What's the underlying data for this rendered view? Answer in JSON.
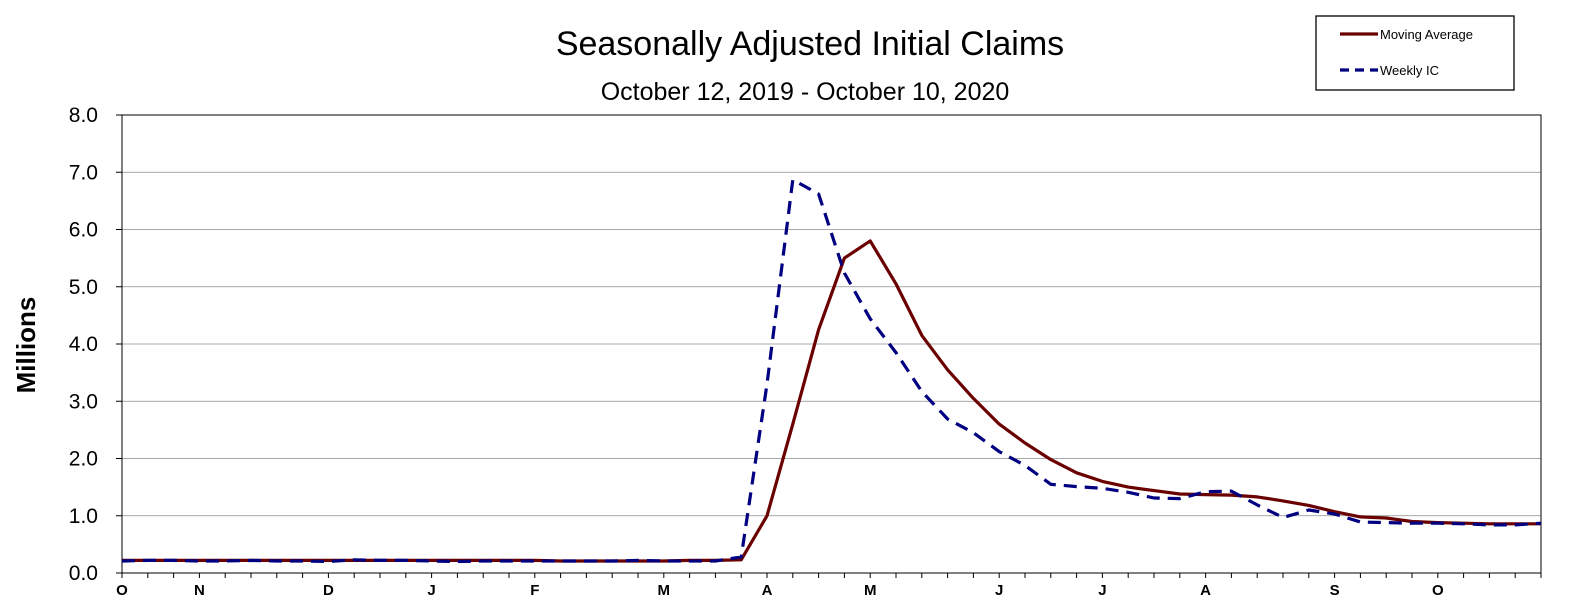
{
  "chart_data": {
    "type": "line",
    "title": "Seasonally Adjusted Initial Claims",
    "subtitle": "October 12, 2019 - October 10, 2020",
    "ylabel": "Millions",
    "xlabel": "",
    "ylim": [
      0,
      8
    ],
    "yticks": [
      "0.0",
      "1.0",
      "2.0",
      "3.0",
      "4.0",
      "5.0",
      "6.0",
      "7.0",
      "8.0"
    ],
    "xtick_labels": [
      "O",
      "N",
      "D",
      "J",
      "F",
      "M",
      "A",
      "M",
      "J",
      "J",
      "A",
      "S",
      "O"
    ],
    "xtick_weeks": [
      0,
      3,
      8,
      12,
      16,
      21,
      25,
      29,
      34,
      38,
      42,
      47,
      51
    ],
    "grid": true,
    "legend_position": "top-right",
    "colors": {
      "moving_average": "#6b0000",
      "weekly_ic": "#000080"
    },
    "series": [
      {
        "name": "Moving Average",
        "style": "solid",
        "values": [
          0.22,
          0.22,
          0.22,
          0.22,
          0.22,
          0.22,
          0.22,
          0.22,
          0.22,
          0.22,
          0.22,
          0.22,
          0.22,
          0.22,
          0.22,
          0.22,
          0.22,
          0.21,
          0.21,
          0.21,
          0.21,
          0.21,
          0.22,
          0.22,
          0.23,
          1.0,
          2.6,
          4.25,
          5.5,
          5.8,
          5.05,
          4.15,
          3.55,
          3.05,
          2.6,
          2.27,
          1.98,
          1.75,
          1.6,
          1.5,
          1.44,
          1.38,
          1.37,
          1.36,
          1.33,
          1.26,
          1.18,
          1.07,
          0.98,
          0.96,
          0.9,
          0.88,
          0.87,
          0.86,
          0.86,
          0.86
        ]
      },
      {
        "name": "Weekly IC",
        "style": "dashed",
        "values": [
          0.21,
          0.22,
          0.22,
          0.21,
          0.21,
          0.22,
          0.21,
          0.21,
          0.2,
          0.23,
          0.22,
          0.22,
          0.21,
          0.2,
          0.21,
          0.21,
          0.21,
          0.21,
          0.21,
          0.21,
          0.22,
          0.21,
          0.21,
          0.21,
          0.28,
          3.3,
          6.87,
          6.62,
          5.24,
          4.44,
          3.85,
          3.17,
          2.69,
          2.45,
          2.12,
          1.88,
          1.55,
          1.51,
          1.48,
          1.41,
          1.31,
          1.3,
          1.42,
          1.43,
          1.19,
          0.97,
          1.1,
          1.03,
          0.89,
          0.88,
          0.87,
          0.87,
          0.86,
          0.84,
          0.84,
          0.87
        ]
      }
    ]
  }
}
